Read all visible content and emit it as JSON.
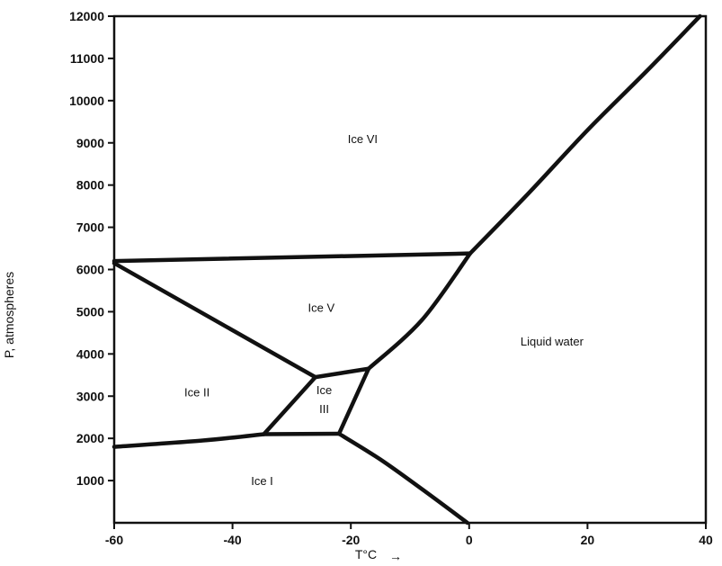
{
  "chart_data": {
    "type": "line",
    "title": "",
    "xlabel": "T°C",
    "ylabel": "P, atmospheres",
    "xlim": [
      -60,
      40
    ],
    "ylim": [
      0,
      12000
    ],
    "x_ticks": [
      -60,
      -40,
      -20,
      0,
      20,
      40
    ],
    "y_ticks": [
      1000,
      2000,
      3000,
      4000,
      5000,
      6000,
      7000,
      8000,
      9000,
      10000,
      11000,
      12000
    ],
    "x_tick_labels": [
      "-60",
      "-40",
      "-20",
      "0",
      "20",
      "40"
    ],
    "y_tick_labels": [
      "1000",
      "2000",
      "3000",
      "4000",
      "5000",
      "6000",
      "7000",
      "8000",
      "9000",
      "10000",
      "11000",
      "12000"
    ],
    "xlabel_arrow": "→",
    "grid": false,
    "series": [
      {
        "values": [
          [
            -60,
            1800
          ],
          [
            -45,
            1950
          ],
          [
            -34.7,
            2100
          ]
        ]
      },
      {
        "values": [
          [
            -34.7,
            2100
          ],
          [
            -22,
            2110
          ]
        ]
      },
      {
        "values": [
          [
            -22,
            2110
          ],
          [
            -15,
            1500
          ],
          [
            -8,
            800
          ],
          [
            -0.3,
            0
          ]
        ]
      },
      {
        "values": [
          [
            -34.7,
            2100
          ],
          [
            -26,
            3450
          ]
        ]
      },
      {
        "values": [
          [
            -22,
            2110
          ],
          [
            -17,
            3650
          ]
        ]
      },
      {
        "values": [
          [
            -26,
            3450
          ],
          [
            -17,
            3650
          ]
        ]
      },
      {
        "values": [
          [
            -60,
            6150
          ],
          [
            -26,
            3450
          ]
        ]
      },
      {
        "values": [
          [
            -17,
            3650
          ],
          [
            -8,
            4800
          ],
          [
            0.16,
            6380
          ]
        ]
      },
      {
        "values": [
          [
            -60,
            6200
          ],
          [
            0.16,
            6380
          ]
        ]
      },
      {
        "values": [
          [
            0.16,
            6380
          ],
          [
            10,
            7800
          ],
          [
            20,
            9300
          ],
          [
            30,
            10700
          ],
          [
            39,
            12000
          ]
        ]
      }
    ],
    "regions": [
      {
        "label": "Ice VI",
        "x": -18,
        "y": 9000
      },
      {
        "label": "Ice V",
        "x": -25,
        "y": 5000
      },
      {
        "label": "Liquid water",
        "x": 14,
        "y": 4200
      },
      {
        "label": "Ice II",
        "x": -46,
        "y": 3000
      },
      {
        "label": "Ice",
        "x": -24.5,
        "y": 3050
      },
      {
        "label": "III",
        "x": -24.5,
        "y": 2600
      },
      {
        "label": "Ice I",
        "x": -35,
        "y": 900
      }
    ]
  }
}
